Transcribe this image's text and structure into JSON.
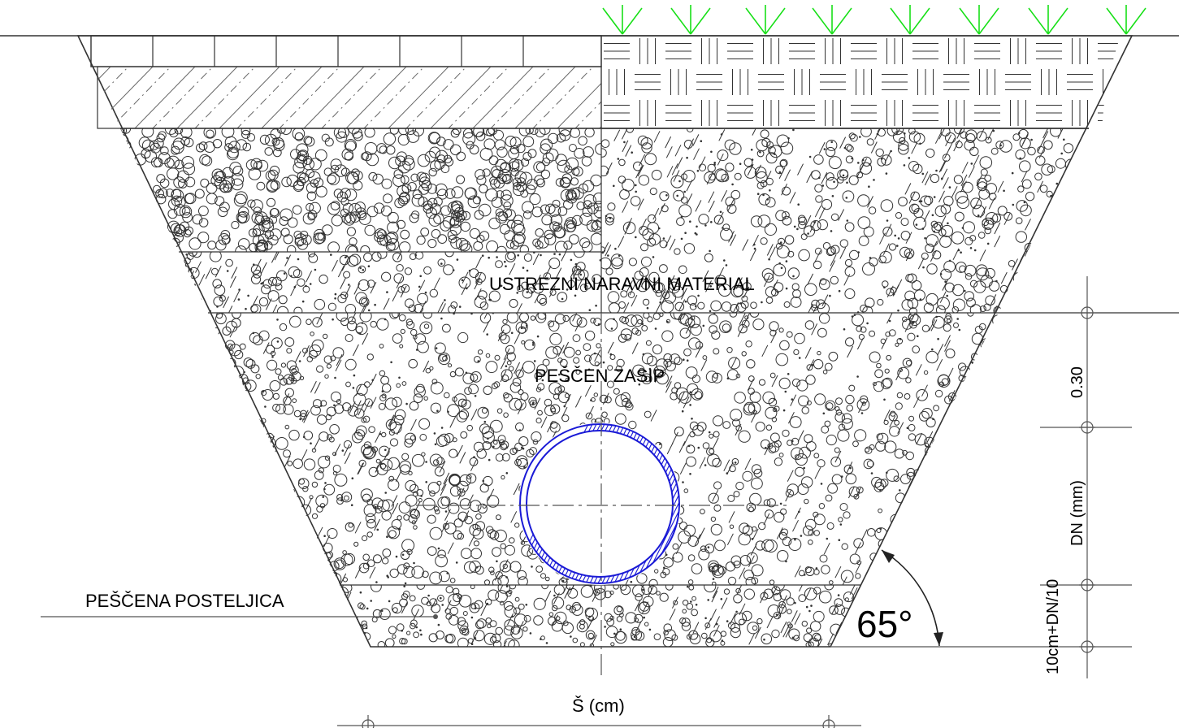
{
  "labels": {
    "natural_material": "USTREZNI NARAVNI MATERIAL",
    "sand_backfill": "PEŠČEN ZASIP",
    "sand_bedding": "PEŠČENA POSTELJICA",
    "width": "Š (cm)",
    "dim_cover": "0.30",
    "dim_pipe": "DN (mm)",
    "dim_bedding": "10cm+DN/10",
    "angle": "65°"
  },
  "colors": {
    "line": "#333333",
    "pipe": "#1a1ad6",
    "grass": "#18e018",
    "hatch": "#666666"
  }
}
